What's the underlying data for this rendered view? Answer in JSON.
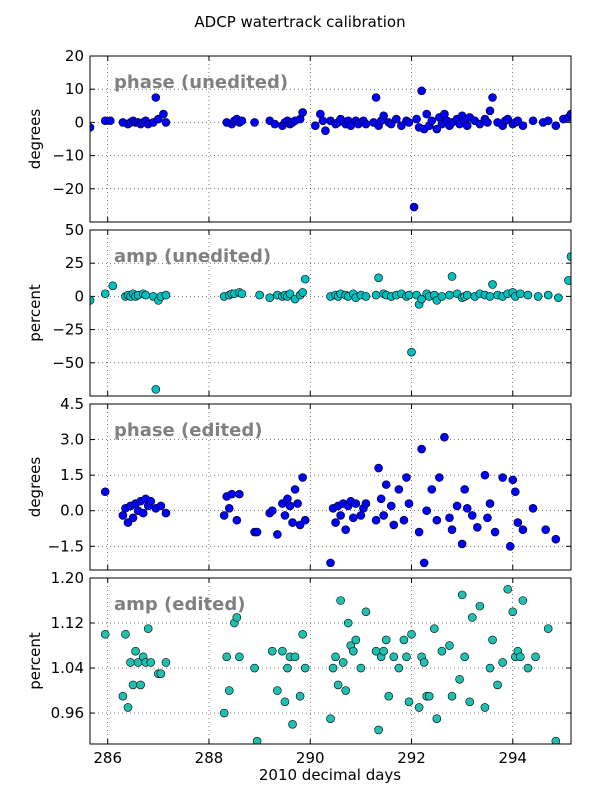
{
  "figure": {
    "title": "ADCP watertrack calibration",
    "xlabel": "2010 decimal days"
  },
  "chart_data": [
    {
      "type": "scatter",
      "panel_label": "phase (unedited)",
      "ylabel": "degrees",
      "xlim": [
        285.65,
        295.15
      ],
      "ylim": [
        -30,
        20
      ],
      "xticks": [
        286,
        288,
        290,
        292,
        294
      ],
      "yticks": [
        20,
        10,
        0,
        -10,
        -20
      ],
      "ytick_labels": [
        "20",
        "10",
        "0",
        "−10",
        "−20"
      ],
      "grid": true,
      "marker_color": "#0000ff",
      "x": [
        285.65,
        285.95,
        286.05,
        286.3,
        286.4,
        286.45,
        286.5,
        286.55,
        286.6,
        286.65,
        286.7,
        286.75,
        286.8,
        286.9,
        286.95,
        287.0,
        287.1,
        287.15,
        288.35,
        288.45,
        288.5,
        288.55,
        288.6,
        288.65,
        288.9,
        289.2,
        289.3,
        289.45,
        289.5,
        289.55,
        289.6,
        289.65,
        289.7,
        289.8,
        289.85,
        290.1,
        290.2,
        290.25,
        290.3,
        290.4,
        290.5,
        290.55,
        290.6,
        290.7,
        290.75,
        290.8,
        290.9,
        290.95,
        291.05,
        291.1,
        291.25,
        291.3,
        291.35,
        291.4,
        291.45,
        291.55,
        291.6,
        291.7,
        291.8,
        291.9,
        291.95,
        292.05,
        292.1,
        292.15,
        292.2,
        292.25,
        292.3,
        292.35,
        292.4,
        292.5,
        292.55,
        292.6,
        292.65,
        292.7,
        292.75,
        292.8,
        292.9,
        292.95,
        293.0,
        293.05,
        293.1,
        293.15,
        293.25,
        293.35,
        293.45,
        293.5,
        293.55,
        293.6,
        293.7,
        293.8,
        293.85,
        293.9,
        294.0,
        294.05,
        294.1,
        294.2,
        294.4,
        294.6,
        294.7,
        294.85,
        295.0,
        295.1,
        295.15
      ],
      "y": [
        -1.5,
        0.5,
        0.5,
        0.0,
        -0.5,
        0.0,
        0.5,
        0.0,
        0.0,
        -0.5,
        0.0,
        0.5,
        -0.5,
        0.0,
        7.5,
        1.0,
        2.5,
        0.0,
        0.0,
        -0.5,
        0.5,
        1.0,
        0.0,
        0.5,
        0.0,
        0.5,
        -0.5,
        -1.0,
        0.0,
        0.5,
        -0.5,
        0.0,
        0.5,
        1.0,
        3.0,
        -1.0,
        2.5,
        0.5,
        -2.5,
        0.5,
        -0.5,
        0.0,
        1.0,
        -0.5,
        0.5,
        -1.0,
        0.5,
        -0.5,
        0.5,
        -0.5,
        0.0,
        7.5,
        -1.0,
        0.5,
        2.0,
        0.0,
        -0.5,
        1.0,
        -1.0,
        0.5,
        0.0,
        -25.5,
        1.0,
        -1.5,
        9.5,
        -2.0,
        2.5,
        -1.0,
        0.5,
        -2.0,
        1.5,
        -0.5,
        2.5,
        0.5,
        -1.0,
        0.0,
        1.0,
        -0.5,
        2.0,
        0.5,
        -1.0,
        1.5,
        0.5,
        -0.5,
        1.0,
        0.0,
        3.5,
        7.5,
        0.0,
        -1.0,
        0.5,
        1.0,
        -0.5,
        0.0,
        0.5,
        -1.0,
        0.5,
        0.0,
        0.5,
        -1.0,
        1.0,
        1.5,
        2.5
      ]
    },
    {
      "type": "scatter",
      "panel_label": "amp (unedited)",
      "ylabel": "percent",
      "xlim": [
        285.65,
        295.15
      ],
      "ylim": [
        -75,
        50
      ],
      "xticks": [
        286,
        288,
        290,
        292,
        294
      ],
      "yticks": [
        50,
        25,
        0,
        -25,
        -50
      ],
      "ytick_labels": [
        "50",
        "25",
        "0",
        "−25",
        "−50"
      ],
      "grid": true,
      "marker_color": "#00bfbf",
      "x": [
        285.65,
        285.95,
        286.1,
        286.35,
        286.4,
        286.45,
        286.5,
        286.55,
        286.6,
        286.7,
        286.75,
        286.9,
        286.95,
        287.0,
        287.05,
        287.15,
        288.3,
        288.4,
        288.45,
        288.5,
        288.6,
        288.65,
        289.0,
        289.2,
        289.35,
        289.45,
        289.5,
        289.55,
        289.6,
        289.7,
        289.8,
        289.85,
        289.9,
        290.4,
        290.5,
        290.55,
        290.6,
        290.7,
        290.75,
        290.85,
        290.9,
        291.0,
        291.1,
        291.3,
        291.35,
        291.45,
        291.5,
        291.6,
        291.7,
        291.8,
        291.9,
        291.95,
        292.0,
        292.1,
        292.15,
        292.2,
        292.3,
        292.35,
        292.45,
        292.5,
        292.6,
        292.75,
        292.8,
        292.9,
        293.0,
        293.05,
        293.1,
        293.25,
        293.35,
        293.45,
        293.55,
        293.6,
        293.7,
        293.8,
        293.9,
        294.0,
        294.05,
        294.15,
        294.3,
        294.5,
        294.7,
        294.9,
        295.1,
        295.15
      ],
      "y": [
        -3,
        2,
        8,
        0,
        1,
        0,
        2,
        0,
        1,
        2,
        1,
        0,
        -70,
        -3,
        0,
        1,
        0,
        1,
        2,
        2,
        3,
        2,
        1,
        -1,
        1,
        0,
        1,
        0,
        2,
        -2,
        1,
        3,
        13,
        0,
        1,
        0,
        2,
        1,
        0,
        2,
        -1,
        1,
        0,
        1,
        14,
        2,
        1,
        0,
        1,
        2,
        0,
        1,
        -42,
        1,
        -6,
        -2,
        2,
        0,
        1,
        -3,
        0,
        1,
        15,
        2,
        -1,
        0,
        1,
        0,
        2,
        1,
        0,
        9,
        1,
        0,
        2,
        3,
        0,
        2,
        1,
        0,
        1,
        -1,
        12,
        30
      ]
    },
    {
      "type": "scatter",
      "panel_label": "phase (edited)",
      "ylabel": "degrees",
      "xlim": [
        285.65,
        295.15
      ],
      "ylim": [
        -2.5,
        4.5
      ],
      "xticks": [
        286,
        288,
        290,
        292,
        294
      ],
      "yticks": [
        4.5,
        3.0,
        1.5,
        0.0,
        -1.5
      ],
      "ytick_labels": [
        "4.5",
        "3.0",
        "1.5",
        "0.0",
        "−1.5"
      ],
      "grid": true,
      "marker_color": "#0000ff",
      "x": [
        285.95,
        286.3,
        286.35,
        286.4,
        286.45,
        286.5,
        286.55,
        286.6,
        286.65,
        286.7,
        286.75,
        286.8,
        286.85,
        286.95,
        287.05,
        287.15,
        288.3,
        288.35,
        288.4,
        288.45,
        288.55,
        288.6,
        288.9,
        288.95,
        289.2,
        289.25,
        289.35,
        289.45,
        289.5,
        289.55,
        289.6,
        289.65,
        289.7,
        289.75,
        289.8,
        289.85,
        289.9,
        290.4,
        290.45,
        290.5,
        290.55,
        290.6,
        290.65,
        290.7,
        290.75,
        290.8,
        290.85,
        290.9,
        291.0,
        291.05,
        291.1,
        291.3,
        291.35,
        291.4,
        291.45,
        291.5,
        291.6,
        291.65,
        291.75,
        291.85,
        291.9,
        291.95,
        292.15,
        292.2,
        292.25,
        292.3,
        292.4,
        292.5,
        292.55,
        292.65,
        292.75,
        292.8,
        292.9,
        293.0,
        293.05,
        293.1,
        293.2,
        293.3,
        293.45,
        293.5,
        293.55,
        293.65,
        293.8,
        293.95,
        294.0,
        294.05,
        294.1,
        294.2,
        294.4,
        294.65,
        294.85
      ],
      "y": [
        0.8,
        -0.2,
        0.1,
        -0.5,
        0.2,
        -0.3,
        0.3,
        0.0,
        0.4,
        -0.1,
        0.5,
        0.2,
        0.4,
        0.1,
        0.2,
        -0.1,
        -0.2,
        0.6,
        0.1,
        0.7,
        -0.4,
        0.7,
        -0.9,
        -0.9,
        -0.1,
        0.0,
        -1.0,
        0.3,
        -0.2,
        0.5,
        0.2,
        -0.5,
        0.9,
        0.3,
        -0.6,
        1.4,
        -0.4,
        -2.2,
        0.1,
        -0.5,
        0.2,
        -0.2,
        0.3,
        -0.8,
        0.2,
        0.4,
        -0.3,
        0.3,
        -0.2,
        0.1,
        0.3,
        -0.4,
        1.8,
        0.5,
        -0.2,
        1.1,
        0.2,
        -0.6,
        0.9,
        -0.4,
        1.4,
        0.3,
        -0.9,
        2.6,
        -2.2,
        0.0,
        0.9,
        -0.4,
        1.4,
        3.1,
        -0.3,
        -0.8,
        0.2,
        -1.4,
        0.9,
        0.1,
        -0.2,
        -0.7,
        1.5,
        -0.3,
        0.3,
        -0.9,
        1.4,
        -1.5,
        1.3,
        0.8,
        -0.5,
        -0.8,
        0.1,
        -0.8,
        -1.2
      ]
    },
    {
      "type": "scatter",
      "panel_label": "amp (edited)",
      "ylabel": "percent",
      "xlim": [
        285.65,
        295.15
      ],
      "ylim": [
        0.905,
        1.2
      ],
      "xticks": [
        286,
        288,
        290,
        292,
        294
      ],
      "yticks": [
        1.2,
        1.12,
        1.04,
        0.96
      ],
      "ytick_labels": [
        "1.20",
        "1.12",
        "1.04",
        "0.96"
      ],
      "grid": true,
      "marker_color": "#20c0b0",
      "x": [
        285.95,
        286.3,
        286.35,
        286.4,
        286.45,
        286.5,
        286.55,
        286.6,
        286.65,
        286.7,
        286.75,
        286.8,
        286.85,
        287.0,
        287.05,
        287.15,
        288.3,
        288.35,
        288.4,
        288.5,
        288.55,
        288.6,
        288.9,
        288.95,
        289.25,
        289.35,
        289.45,
        289.5,
        289.55,
        289.6,
        289.65,
        289.7,
        289.8,
        289.85,
        289.9,
        290.4,
        290.45,
        290.5,
        290.55,
        290.6,
        290.65,
        290.7,
        290.75,
        290.8,
        290.85,
        290.9,
        291.0,
        291.1,
        291.3,
        291.35,
        291.4,
        291.45,
        291.5,
        291.55,
        291.65,
        291.75,
        291.85,
        291.9,
        291.95,
        292.0,
        292.15,
        292.2,
        292.25,
        292.3,
        292.35,
        292.45,
        292.5,
        292.6,
        292.75,
        292.8,
        292.95,
        293.0,
        293.05,
        293.15,
        293.2,
        293.35,
        293.45,
        293.55,
        293.6,
        293.7,
        293.8,
        293.9,
        294.0,
        294.05,
        294.1,
        294.15,
        294.2,
        294.3,
        294.45,
        294.7,
        294.85
      ],
      "y": [
        1.1,
        0.99,
        1.1,
        0.97,
        1.05,
        1.01,
        1.07,
        1.05,
        1.01,
        1.06,
        1.05,
        1.11,
        1.05,
        1.03,
        1.03,
        1.05,
        0.96,
        1.06,
        1.0,
        1.12,
        1.13,
        1.06,
        1.04,
        0.91,
        1.07,
        1.0,
        1.07,
        0.98,
        1.04,
        1.06,
        0.94,
        1.06,
        0.99,
        1.1,
        1.04,
        0.95,
        1.04,
        1.06,
        1.01,
        1.16,
        1.05,
        1.0,
        1.12,
        1.08,
        1.07,
        1.09,
        1.04,
        1.14,
        1.07,
        0.93,
        1.06,
        1.07,
        1.09,
        0.99,
        1.06,
        1.04,
        1.09,
        1.06,
        0.98,
        1.1,
        0.97,
        1.06,
        1.05,
        0.99,
        0.99,
        1.11,
        0.95,
        1.07,
        1.08,
        0.99,
        1.02,
        1.17,
        1.06,
        0.98,
        1.13,
        1.15,
        0.97,
        1.04,
        1.09,
        1.01,
        1.05,
        1.18,
        1.14,
        1.06,
        1.07,
        1.06,
        1.16,
        1.04,
        1.06,
        1.11,
        0.91
      ]
    }
  ]
}
